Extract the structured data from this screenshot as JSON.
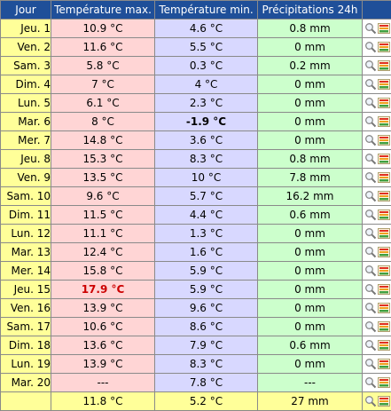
{
  "headers": {
    "day": "Jour",
    "tmax": "Température max.",
    "tmin": "Température min.",
    "precip": "Précipitations 24h"
  },
  "rows": [
    {
      "day": "Jeu. 1",
      "tmax": "10.9 °C",
      "tmin": "4.6 °C",
      "precip": "0.8 mm"
    },
    {
      "day": "Ven. 2",
      "tmax": "11.6 °C",
      "tmin": "5.5 °C",
      "precip": "0 mm"
    },
    {
      "day": "Sam. 3",
      "tmax": "5.8 °C",
      "tmin": "0.3 °C",
      "precip": "0.2 mm"
    },
    {
      "day": "Dim. 4",
      "tmax": "7 °C",
      "tmin": "4 °C",
      "precip": "0 mm"
    },
    {
      "day": "Lun. 5",
      "tmax": "6.1 °C",
      "tmin": "2.3 °C",
      "precip": "0 mm"
    },
    {
      "day": "Mar. 6",
      "tmax": "8 °C",
      "tmin": "-1.9 °C",
      "precip": "0 mm"
    },
    {
      "day": "Mer. 7",
      "tmax": "14.8 °C",
      "tmin": "3.6 °C",
      "precip": "0 mm"
    },
    {
      "day": "Jeu. 8",
      "tmax": "15.3 °C",
      "tmin": "8.3 °C",
      "precip": "0.8 mm"
    },
    {
      "day": "Ven. 9",
      "tmax": "13.5 °C",
      "tmin": "10 °C",
      "precip": "7.8 mm"
    },
    {
      "day": "Sam. 10",
      "tmax": "9.6 °C",
      "tmin": "5.7 °C",
      "precip": "16.2 mm"
    },
    {
      "day": "Dim. 11",
      "tmax": "11.5 °C",
      "tmin": "4.4 °C",
      "precip": "0.6 mm"
    },
    {
      "day": "Lun. 12",
      "tmax": "11.1 °C",
      "tmin": "1.3 °C",
      "precip": "0 mm"
    },
    {
      "day": "Mar. 13",
      "tmax": "12.4 °C",
      "tmin": "1.6 °C",
      "precip": "0 mm"
    },
    {
      "day": "Mer. 14",
      "tmax": "15.8 °C",
      "tmin": "5.9 °C",
      "precip": "0 mm"
    },
    {
      "day": "Jeu. 15",
      "tmax": "17.9 °C",
      "tmin": "5.9 °C",
      "precip": "0 mm"
    },
    {
      "day": "Ven. 16",
      "tmax": "13.9 °C",
      "tmin": "9.6 °C",
      "precip": "0 mm"
    },
    {
      "day": "Sam. 17",
      "tmax": "10.6 °C",
      "tmin": "8.6 °C",
      "precip": "0 mm"
    },
    {
      "day": "Dim. 18",
      "tmax": "13.6 °C",
      "tmin": "7.9 °C",
      "precip": "0.6 mm"
    },
    {
      "day": "Lun. 19",
      "tmax": "13.9 °C",
      "tmin": "8.3 °C",
      "precip": "0 mm"
    },
    {
      "day": "Mar. 20",
      "tmax": "---",
      "tmin": "7.8 °C",
      "precip": "---"
    }
  ],
  "summary": {
    "tmax": "11.8 °C",
    "tmin": "5.2 °C",
    "precip": "27 mm"
  },
  "highlights": {
    "hottest_row": 14,
    "coldest_row": 5
  },
  "icons": {
    "zoom": "magnifier-icon",
    "chart": "chart-icon"
  },
  "colors": {
    "header_bg": "#1f4f99",
    "day_bg": "#ffff99",
    "tmax_bg": "#ffd5d5",
    "tmin_bg": "#d8d8ff",
    "precip_bg": "#ccffcc",
    "hot_text": "#cc0000"
  }
}
